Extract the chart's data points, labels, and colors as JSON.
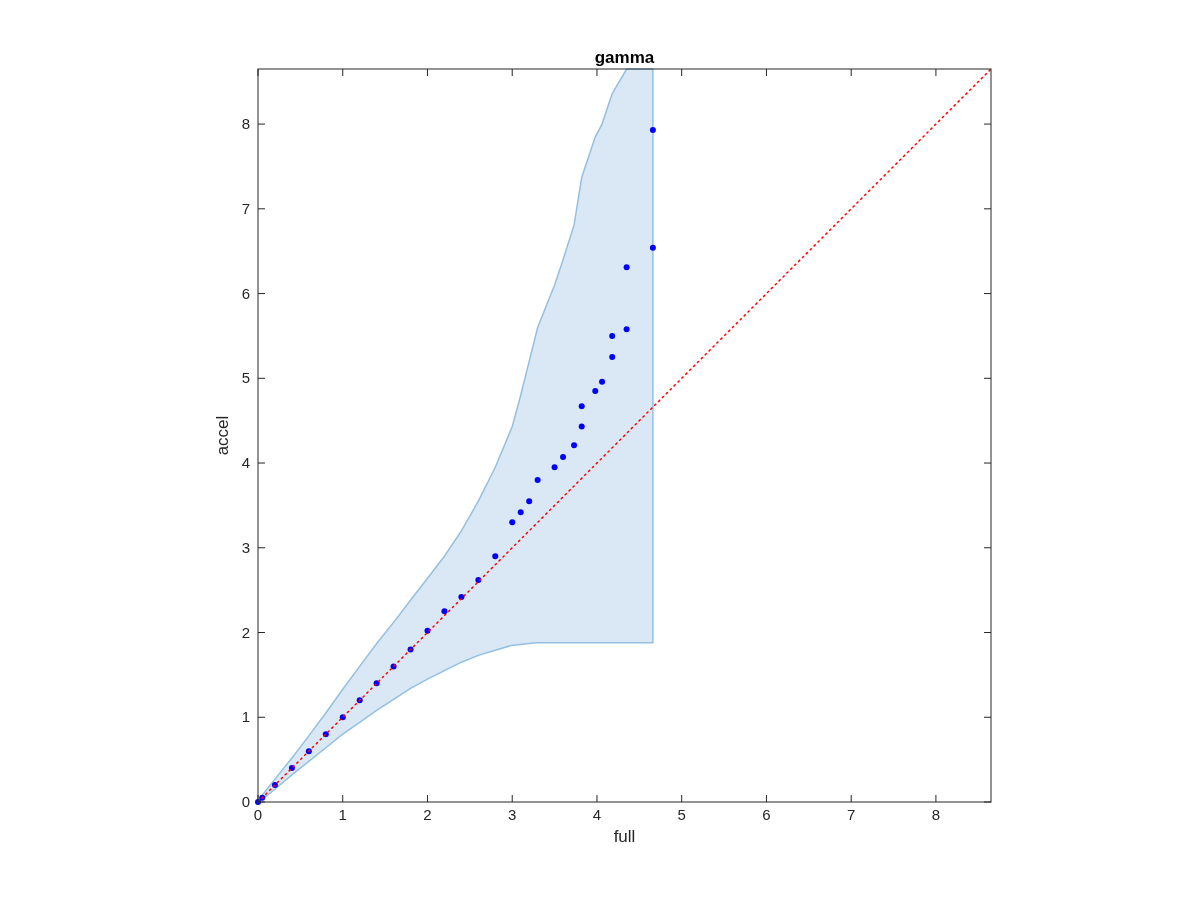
{
  "chart_data": {
    "type": "scatter",
    "title": "gamma",
    "xlabel": "full",
    "ylabel": "accel",
    "xlim": [
      0,
      8.65
    ],
    "ylim": [
      0,
      8.65
    ],
    "xticks": [
      0,
      1,
      2,
      3,
      4,
      5,
      6,
      7,
      8
    ],
    "yticks": [
      0,
      1,
      2,
      3,
      4,
      5,
      6,
      7,
      8
    ],
    "grid": false,
    "series": [
      {
        "type": "scatter",
        "color": "#0000ff",
        "marker": "circle",
        "x": [
          0,
          0.05,
          0.2,
          0.4,
          0.6,
          0.8,
          1.0,
          1.2,
          1.4,
          1.6,
          1.8,
          2.0,
          2.2,
          2.4,
          2.6,
          2.8,
          3.0,
          3.1,
          3.2,
          3.3,
          3.5,
          3.6,
          3.73,
          3.82,
          3.82,
          3.98,
          4.06,
          4.18,
          4.18,
          4.35,
          4.35,
          4.66,
          4.66
        ],
        "values": [
          0,
          0.05,
          0.2,
          0.4,
          0.6,
          0.8,
          1.0,
          1.2,
          1.4,
          1.6,
          1.8,
          2.02,
          2.25,
          2.42,
          2.62,
          2.9,
          3.3,
          3.42,
          3.55,
          3.8,
          3.95,
          4.07,
          4.21,
          4.43,
          4.67,
          4.85,
          4.96,
          5.25,
          5.5,
          5.58,
          6.31,
          6.54,
          7.93
        ],
        "lower": [
          0,
          0.03,
          0.15,
          0.32,
          0.48,
          0.64,
          0.8,
          0.94,
          1.08,
          1.21,
          1.34,
          1.45,
          1.55,
          1.65,
          1.73,
          1.79,
          1.85,
          1.86,
          1.87,
          1.88,
          1.88,
          1.88,
          1.88,
          1.88,
          1.88,
          1.88,
          1.88,
          1.88,
          1.88,
          1.88,
          1.88,
          1.88,
          1.88
        ],
        "upper": [
          0,
          0.08,
          0.27,
          0.52,
          0.78,
          1.05,
          1.33,
          1.6,
          1.87,
          2.12,
          2.38,
          2.64,
          2.9,
          3.2,
          3.55,
          3.95,
          4.43,
          4.8,
          5.2,
          5.6,
          6.1,
          6.4,
          6.81,
          7.37,
          7.37,
          7.85,
          8.0,
          8.36,
          8.36,
          8.65,
          8.65,
          8.65,
          8.65
        ]
      },
      {
        "type": "line",
        "color": "#ff0000",
        "line_style": "dotted",
        "marker": "none",
        "x": [
          0,
          8.65
        ],
        "values": [
          0,
          8.65
        ]
      }
    ]
  }
}
